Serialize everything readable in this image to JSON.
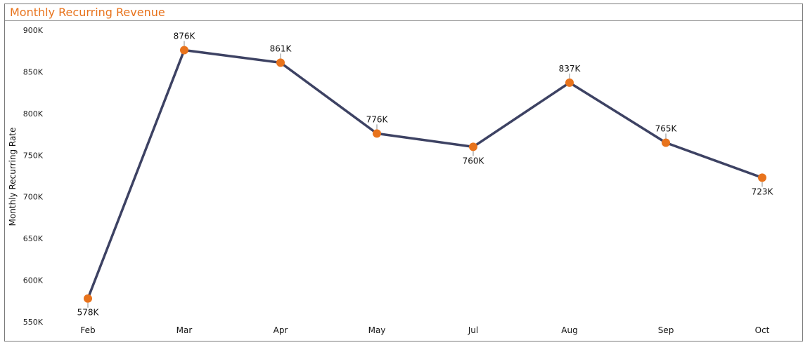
{
  "chart_data": {
    "type": "line",
    "title": "Monthly Recurring Revenue",
    "xlabel": "",
    "ylabel": "Monthly Recurring Rate",
    "categories": [
      "Feb",
      "Mar",
      "Apr",
      "May",
      "Jul",
      "Aug",
      "Sep",
      "Oct"
    ],
    "series": [
      {
        "values": [
          578000,
          876000,
          861000,
          776000,
          760000,
          837000,
          765000,
          723000
        ]
      }
    ],
    "data_labels": [
      "578K",
      "876K",
      "861K",
      "776K",
      "760K",
      "837K",
      "765K",
      "723K"
    ],
    "data_label_positions": [
      "below",
      "above",
      "above",
      "above",
      "below",
      "above",
      "above",
      "below"
    ],
    "ylim": [
      550000,
      900000
    ],
    "yticks": [
      550000,
      600000,
      650000,
      700000,
      750000,
      800000,
      850000,
      900000
    ],
    "ytick_labels": [
      "550K",
      "600K",
      "650K",
      "700K",
      "750K",
      "800K",
      "850K",
      "900K"
    ],
    "grid": false,
    "legend": "none",
    "colors": {
      "line": "#3d4263",
      "marker": "#e8731c",
      "title": "#e8731c"
    }
  }
}
